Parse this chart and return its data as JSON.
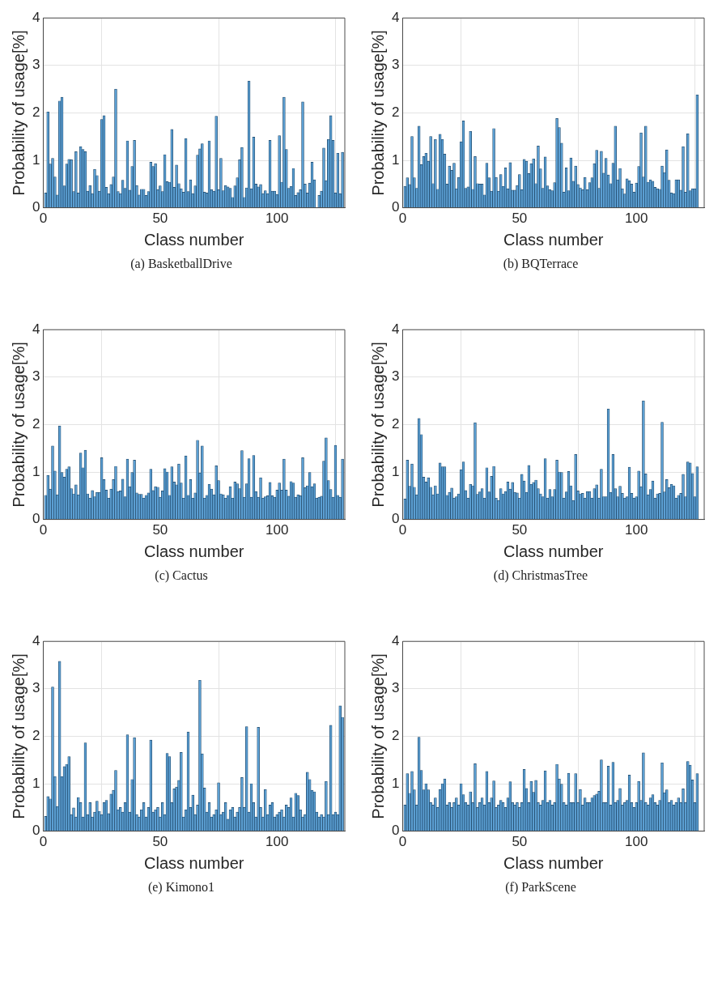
{
  "chart_data": [
    {
      "type": "bar",
      "title": "(a) BasketballDrive",
      "xlabel": "Class number",
      "ylabel": "Probability of usage[%]",
      "color": "#5b9fd3",
      "xlim": [
        0,
        129
      ],
      "xticks": [
        0,
        50,
        100
      ],
      "ylim": [
        0,
        4
      ],
      "yticks": [
        0,
        1,
        2,
        3,
        4
      ],
      "grid": true,
      "x": [
        1,
        2,
        3,
        4,
        5,
        6,
        7,
        8,
        9,
        10,
        11,
        12,
        13,
        14,
        15,
        16,
        17,
        18,
        19,
        20,
        21,
        22,
        23,
        24,
        25,
        26,
        27,
        28,
        29,
        30,
        31,
        32,
        33,
        34,
        35,
        36,
        37,
        38,
        39,
        40,
        41,
        42,
        43,
        44,
        45,
        46,
        47,
        48,
        49,
        50,
        51,
        52,
        53,
        54,
        55,
        56,
        57,
        58,
        59,
        60,
        61,
        62,
        63,
        64,
        65,
        66,
        67,
        68,
        69,
        70,
        71,
        72,
        73,
        74,
        75,
        76,
        77,
        78,
        79,
        80,
        81,
        82,
        83,
        84,
        85,
        86,
        87,
        88,
        89,
        90,
        91,
        92,
        93,
        94,
        95,
        96,
        97,
        98,
        99,
        100,
        101,
        102,
        103,
        104,
        105,
        106,
        107,
        108,
        109,
        110,
        111,
        112,
        113,
        114,
        115,
        116,
        117,
        118,
        119,
        120,
        121,
        122,
        123,
        124,
        125,
        126,
        127,
        128
      ],
      "values": [
        0.31,
        2.02,
        0.92,
        1.04,
        0.65,
        0.27,
        2.25,
        2.33,
        0.46,
        0.92,
        1.02,
        1.01,
        0.34,
        1.18,
        0.31,
        1.29,
        1.23,
        1.18,
        0.35,
        0.47,
        0.3,
        0.81,
        0.68,
        0.35,
        1.86,
        1.94,
        0.43,
        0.3,
        0.49,
        0.65,
        2.5,
        0.34,
        0.3,
        0.58,
        0.41,
        1.41,
        0.37,
        0.87,
        1.42,
        0.47,
        0.27,
        0.39,
        0.39,
        0.26,
        0.34,
        0.96,
        0.87,
        0.93,
        0.38,
        0.46,
        0.34,
        1.12,
        0.55,
        0.54,
        1.65,
        0.43,
        0.9,
        0.51,
        0.4,
        0.33,
        1.46,
        0.34,
        0.59,
        0.3,
        0.46,
        1.11,
        1.24,
        1.35,
        0.33,
        0.31,
        1.41,
        0.38,
        0.35,
        1.93,
        0.38,
        1.04,
        0.36,
        0.47,
        0.44,
        0.41,
        0.22,
        0.46,
        0.63,
        1.01,
        1.27,
        0.22,
        0.42,
        2.67,
        0.4,
        1.49,
        0.5,
        0.44,
        0.49,
        0.3,
        0.36,
        0.3,
        1.42,
        0.35,
        0.35,
        0.28,
        1.52,
        0.54,
        2.33,
        1.23,
        0.41,
        0.45,
        0.83,
        0.26,
        0.32,
        0.38,
        2.23,
        0.5,
        0.31,
        0.52,
        0.96,
        0.59,
        null,
        0.26,
        0.35,
        1.26,
        0.57,
        1.44,
        1.94,
        1.42,
        0.31,
        1.15,
        0.3,
        1.17
      ]
    },
    {
      "type": "bar",
      "title": "(b) BQTerrace",
      "xlabel": "Class number",
      "ylabel": "Probability of usage[%]",
      "color": "#5b9fd3",
      "xlim": [
        0,
        129
      ],
      "xticks": [
        0,
        50,
        100
      ],
      "ylim": [
        0,
        4
      ],
      "yticks": [
        0,
        1,
        2,
        3,
        4
      ],
      "grid": true,
      "x": [
        1,
        2,
        3,
        4,
        5,
        6,
        7,
        8,
        9,
        10,
        11,
        12,
        13,
        14,
        15,
        16,
        17,
        18,
        19,
        20,
        21,
        22,
        23,
        24,
        25,
        26,
        27,
        28,
        29,
        30,
        31,
        32,
        33,
        34,
        35,
        36,
        37,
        38,
        39,
        40,
        41,
        42,
        43,
        44,
        45,
        46,
        47,
        48,
        49,
        50,
        51,
        52,
        53,
        54,
        55,
        56,
        57,
        58,
        59,
        60,
        61,
        62,
        63,
        64,
        65,
        66,
        67,
        68,
        69,
        70,
        71,
        72,
        73,
        74,
        75,
        76,
        77,
        78,
        79,
        80,
        81,
        82,
        83,
        84,
        85,
        86,
        87,
        88,
        89,
        90,
        91,
        92,
        93,
        94,
        95,
        96,
        97,
        98,
        99,
        100,
        101,
        102,
        103,
        104,
        105,
        106,
        107,
        108,
        109,
        110,
        111,
        112,
        113,
        114,
        115,
        116,
        117,
        118,
        119,
        120,
        121,
        122,
        123,
        124,
        125,
        126
      ],
      "values": [
        0.45,
        0.63,
        0.49,
        1.5,
        0.63,
        0.41,
        1.72,
        0.91,
        1.08,
        1.15,
        0.98,
        1.5,
        0.51,
        1.44,
        0.39,
        1.55,
        1.44,
        1.13,
        0.5,
        0.88,
        0.79,
        0.94,
        0.4,
        0.64,
        1.39,
        1.83,
        0.41,
        0.44,
        1.61,
        0.39,
        1.08,
        0.51,
        0.5,
        0.5,
        0.27,
        0.94,
        0.63,
        0.35,
        1.67,
        0.64,
        0.35,
        0.7,
        0.45,
        0.84,
        0.4,
        0.95,
        0.37,
        0.37,
        0.47,
        0.7,
        0.38,
        1.02,
        0.98,
        0.72,
        0.93,
        1.03,
        0.51,
        1.3,
        0.82,
        0.41,
        1.07,
        0.46,
        0.38,
        0.36,
        0.53,
        1.88,
        1.69,
        1.36,
        0.33,
        0.84,
        0.36,
        1.05,
        0.56,
        0.88,
        0.49,
        0.42,
        0.38,
        0.64,
        0.38,
        0.53,
        0.63,
        0.93,
        1.21,
        0.41,
        1.19,
        0.73,
        1.04,
        0.69,
        0.51,
        0.94,
        1.72,
        0.59,
        0.83,
        0.4,
        0.29,
        0.61,
        0.57,
        0.5,
        0.33,
        0.52,
        0.87,
        1.58,
        0.65,
        1.72,
        0.54,
        0.59,
        0.56,
        0.43,
        0.4,
        0.39,
        0.88,
        0.74,
        1.22,
        0.58,
        0.31,
        0.3,
        0.59,
        0.59,
        0.37,
        1.29,
        0.33,
        1.56,
        0.36,
        0.4,
        0.4,
        2.38
      ]
    },
    {
      "type": "bar",
      "title": "(c) Cactus",
      "xlabel": "Class number",
      "ylabel": "Probability of usage[%]",
      "color": "#5b9fd3",
      "xlim": [
        0,
        129
      ],
      "xticks": [
        0,
        50,
        100
      ],
      "ylim": [
        0,
        4
      ],
      "yticks": [
        0,
        1,
        2,
        3,
        4
      ],
      "grid": true,
      "x": [
        1,
        2,
        3,
        4,
        5,
        6,
        7,
        8,
        9,
        10,
        11,
        12,
        13,
        14,
        15,
        16,
        17,
        18,
        19,
        20,
        21,
        22,
        23,
        24,
        25,
        26,
        27,
        28,
        29,
        30,
        31,
        32,
        33,
        34,
        35,
        36,
        37,
        38,
        39,
        40,
        41,
        42,
        43,
        44,
        45,
        46,
        47,
        48,
        49,
        50,
        51,
        52,
        53,
        54,
        55,
        56,
        57,
        58,
        59,
        60,
        61,
        62,
        63,
        64,
        65,
        66,
        67,
        68,
        69,
        70,
        71,
        72,
        73,
        74,
        75,
        76,
        77,
        78,
        79,
        80,
        81,
        82,
        83,
        84,
        85,
        86,
        87,
        88,
        89,
        90,
        91,
        92,
        93,
        94,
        95,
        96,
        97,
        98,
        99,
        100,
        101,
        102,
        103,
        104,
        105,
        106,
        107,
        108,
        109,
        110,
        111,
        112,
        113,
        114,
        115,
        116,
        117,
        118,
        119,
        120,
        121,
        122,
        123,
        124,
        125,
        126,
        127,
        128
      ],
      "values": [
        0.51,
        0.93,
        0.64,
        1.55,
        1.02,
        0.52,
        1.97,
        0.99,
        0.89,
        1.06,
        1.11,
        0.65,
        0.54,
        0.73,
        0.52,
        1.4,
        1.09,
        1.46,
        0.54,
        0.45,
        0.61,
        0.48,
        0.57,
        0.57,
        1.3,
        0.84,
        0.62,
        0.45,
        0.64,
        0.84,
        1.12,
        0.59,
        0.6,
        0.85,
        0.48,
        1.27,
        0.69,
        0.99,
        1.25,
        0.56,
        0.53,
        0.53,
        0.45,
        0.51,
        0.56,
        1.06,
        0.61,
        0.69,
        0.68,
        0.47,
        0.6,
        1.07,
        1.0,
        0.51,
        1.11,
        0.79,
        0.73,
        1.17,
        0.77,
        0.45,
        1.34,
        0.51,
        0.84,
        0.45,
        0.56,
        1.67,
        0.98,
        1.55,
        0.45,
        0.51,
        0.74,
        0.64,
        0.52,
        1.13,
        0.82,
        0.54,
        0.52,
        0.45,
        0.51,
        0.69,
        0.45,
        0.79,
        0.75,
        0.65,
        1.45,
        0.47,
        0.75,
        1.28,
        0.47,
        1.35,
        0.59,
        0.47,
        0.88,
        0.45,
        0.48,
        0.5,
        0.78,
        0.5,
        0.47,
        0.62,
        0.77,
        0.62,
        1.27,
        0.62,
        0.49,
        0.8,
        0.77,
        0.47,
        0.52,
        0.5,
        1.3,
        0.67,
        0.71,
        0.99,
        0.69,
        0.75,
        0.45,
        0.47,
        0.49,
        1.23,
        1.72,
        0.82,
        0.63,
        0.47,
        1.56,
        0.51,
        0.47,
        1.27
      ]
    },
    {
      "type": "bar",
      "title": "(d) ChristmasTree",
      "xlabel": "Class number",
      "ylabel": "Probability of usage[%]",
      "color": "#5b9fd3",
      "xlim": [
        0,
        129
      ],
      "xticks": [
        0,
        50,
        100
      ],
      "ylim": [
        0,
        4
      ],
      "yticks": [
        0,
        1,
        2,
        3,
        4
      ],
      "grid": true,
      "x": [
        1,
        2,
        3,
        4,
        5,
        6,
        7,
        8,
        9,
        10,
        11,
        12,
        13,
        14,
        15,
        16,
        17,
        18,
        19,
        20,
        21,
        22,
        23,
        24,
        25,
        26,
        27,
        28,
        29,
        30,
        31,
        32,
        33,
        34,
        35,
        36,
        37,
        38,
        39,
        40,
        41,
        42,
        43,
        44,
        45,
        46,
        47,
        48,
        49,
        50,
        51,
        52,
        53,
        54,
        55,
        56,
        57,
        58,
        59,
        60,
        61,
        62,
        63,
        64,
        65,
        66,
        67,
        68,
        69,
        70,
        71,
        72,
        73,
        74,
        75,
        76,
        77,
        78,
        79,
        80,
        81,
        82,
        83,
        84,
        85,
        86,
        87,
        88,
        89,
        90,
        91,
        92,
        93,
        94,
        95,
        96,
        97,
        98,
        99,
        100,
        101,
        102,
        103,
        104,
        105,
        106,
        107,
        108,
        109,
        110,
        111,
        112,
        113,
        114,
        115,
        116,
        117,
        118,
        119,
        120,
        121,
        122,
        123,
        124,
        125,
        126
      ],
      "values": [
        0.43,
        1.25,
        0.7,
        1.17,
        0.68,
        0.52,
        2.13,
        1.79,
        0.89,
        0.79,
        0.88,
        0.68,
        0.52,
        0.71,
        0.54,
        1.19,
        1.11,
        1.11,
        0.51,
        0.57,
        0.66,
        0.45,
        0.48,
        0.54,
        1.05,
        1.21,
        0.61,
        0.45,
        0.74,
        0.71,
        2.04,
        0.53,
        0.58,
        0.65,
        0.45,
        1.09,
        0.58,
        0.91,
        1.12,
        0.45,
        0.4,
        0.65,
        0.54,
        0.59,
        0.79,
        0.64,
        0.78,
        0.57,
        0.56,
        0.45,
        0.95,
        0.81,
        0.57,
        1.14,
        0.74,
        0.78,
        0.83,
        0.65,
        0.54,
        0.48,
        1.28,
        0.45,
        0.63,
        0.48,
        0.63,
        1.25,
        1.0,
        0.99,
        0.45,
        0.58,
        1.01,
        0.71,
        0.4,
        1.37,
        0.6,
        0.54,
        0.55,
        0.45,
        0.59,
        0.59,
        0.45,
        0.65,
        0.73,
        0.45,
        1.06,
        0.48,
        0.48,
        2.33,
        0.57,
        1.37,
        0.65,
        0.48,
        0.7,
        0.55,
        0.45,
        0.48,
        1.1,
        0.55,
        0.45,
        0.48,
        1.02,
        0.69,
        2.5,
        0.96,
        0.52,
        0.63,
        0.81,
        0.45,
        0.54,
        0.55,
        2.05,
        0.58,
        0.84,
        0.67,
        0.74,
        0.71,
        0.45,
        0.51,
        0.55,
        0.95,
        0.48,
        1.21,
        1.19,
        0.97,
        0.48,
        1.11
      ]
    },
    {
      "type": "bar",
      "title": "(e) Kimono1",
      "xlabel": "Class number",
      "ylabel": "Probability of usage[%]",
      "color": "#5b9fd3",
      "xlim": [
        0,
        129
      ],
      "xticks": [
        0,
        50,
        100
      ],
      "ylim": [
        0,
        4
      ],
      "yticks": [
        0,
        1,
        2,
        3,
        4
      ],
      "grid": true,
      "x": [
        1,
        2,
        3,
        4,
        5,
        6,
        7,
        8,
        9,
        10,
        11,
        12,
        13,
        14,
        15,
        16,
        17,
        18,
        19,
        20,
        21,
        22,
        23,
        24,
        25,
        26,
        27,
        28,
        29,
        30,
        31,
        32,
        33,
        34,
        35,
        36,
        37,
        38,
        39,
        40,
        41,
        42,
        43,
        44,
        45,
        46,
        47,
        48,
        49,
        50,
        51,
        52,
        53,
        54,
        55,
        56,
        57,
        58,
        59,
        60,
        61,
        62,
        63,
        64,
        65,
        66,
        67,
        68,
        69,
        70,
        71,
        72,
        73,
        74,
        75,
        76,
        77,
        78,
        79,
        80,
        81,
        82,
        83,
        84,
        85,
        86,
        87,
        88,
        89,
        90,
        91,
        92,
        93,
        94,
        95,
        96,
        97,
        98,
        99,
        100,
        101,
        102,
        103,
        104,
        105,
        106,
        107,
        108,
        109,
        110,
        111,
        112,
        113,
        114,
        115,
        116,
        117,
        118,
        119,
        120,
        121,
        122,
        123,
        124,
        125,
        126,
        127,
        128
      ],
      "values": [
        0.31,
        0.73,
        0.68,
        3.04,
        1.15,
        0.52,
        3.58,
        1.15,
        1.36,
        1.41,
        1.57,
        0.35,
        0.49,
        0.3,
        0.71,
        0.6,
        0.3,
        1.86,
        0.35,
        0.6,
        0.3,
        0.4,
        0.63,
        0.42,
        0.35,
        0.6,
        0.65,
        0.37,
        0.78,
        0.86,
        1.28,
        0.45,
        0.5,
        0.4,
        0.6,
        2.03,
        0.4,
        1.09,
        1.97,
        0.35,
        0.3,
        0.45,
        0.6,
        0.3,
        0.5,
        1.92,
        0.4,
        0.45,
        0.5,
        0.3,
        0.6,
        0.35,
        1.64,
        1.57,
        0.6,
        0.89,
        0.93,
        1.07,
        1.66,
        0.3,
        0.45,
        2.09,
        0.5,
        0.76,
        0.35,
        0.55,
        3.18,
        1.63,
        0.91,
        0.4,
        0.6,
        0.3,
        0.35,
        0.45,
        1.02,
        0.35,
        0.4,
        0.6,
        0.25,
        0.45,
        0.5,
        0.3,
        0.4,
        0.5,
        1.13,
        0.5,
        2.2,
        0.4,
        1.0,
        0.6,
        0.3,
        2.19,
        0.5,
        0.3,
        0.88,
        0.35,
        0.55,
        0.6,
        0.3,
        0.35,
        0.4,
        0.45,
        0.3,
        0.55,
        0.5,
        0.7,
        0.3,
        0.8,
        0.75,
        0.45,
        0.3,
        0.35,
        1.24,
        1.09,
        0.86,
        0.83,
        0.4,
        0.3,
        0.35,
        0.3,
        1.05,
        0.35,
        2.23,
        0.35,
        0.4,
        0.35,
        2.64,
        2.4
      ]
    },
    {
      "type": "bar",
      "title": "(f) ParkScene",
      "xlabel": "Class number",
      "ylabel": "Probability of usage[%]",
      "color": "#5b9fd3",
      "xlim": [
        0,
        129
      ],
      "xticks": [
        0,
        50,
        100
      ],
      "ylim": [
        0,
        4
      ],
      "yticks": [
        0,
        1,
        2,
        3,
        4
      ],
      "grid": true,
      "x": [
        1,
        2,
        3,
        4,
        5,
        6,
        7,
        8,
        9,
        10,
        11,
        12,
        13,
        14,
        15,
        16,
        17,
        18,
        19,
        20,
        21,
        22,
        23,
        24,
        25,
        26,
        27,
        28,
        29,
        30,
        31,
        32,
        33,
        34,
        35,
        36,
        37,
        38,
        39,
        40,
        41,
        42,
        43,
        44,
        45,
        46,
        47,
        48,
        49,
        50,
        51,
        52,
        53,
        54,
        55,
        56,
        57,
        58,
        59,
        60,
        61,
        62,
        63,
        64,
        65,
        66,
        67,
        68,
        69,
        70,
        71,
        72,
        73,
        74,
        75,
        76,
        77,
        78,
        79,
        80,
        81,
        82,
        83,
        84,
        85,
        86,
        87,
        88,
        89,
        90,
        91,
        92,
        93,
        94,
        95,
        96,
        97,
        98,
        99,
        100,
        101,
        102,
        103,
        104,
        105,
        106,
        107,
        108,
        109,
        110,
        111,
        112,
        113,
        114,
        115,
        116,
        117,
        118,
        119,
        120,
        121,
        122,
        123,
        124,
        125,
        126
      ],
      "values": [
        0.55,
        1.21,
        0.8,
        1.26,
        0.87,
        0.55,
        1.98,
        1.28,
        0.87,
        1.0,
        0.87,
        0.6,
        0.55,
        0.7,
        0.5,
        0.88,
        1.0,
        1.1,
        0.55,
        0.6,
        0.5,
        0.6,
        0.7,
        0.55,
        1.0,
        0.77,
        0.6,
        0.55,
        0.83,
        0.6,
        1.42,
        0.5,
        0.6,
        0.7,
        0.55,
        1.26,
        0.6,
        0.7,
        1.06,
        0.5,
        0.55,
        0.65,
        0.6,
        0.5,
        0.7,
        1.04,
        0.6,
        0.55,
        0.6,
        0.5,
        0.6,
        1.3,
        0.9,
        0.6,
        1.05,
        0.82,
        1.07,
        0.6,
        0.55,
        0.65,
        1.27,
        0.6,
        0.65,
        0.55,
        0.6,
        1.41,
        1.1,
        0.99,
        0.6,
        0.55,
        1.22,
        0.6,
        0.6,
        1.21,
        0.6,
        0.88,
        0.55,
        0.7,
        0.6,
        0.6,
        0.7,
        0.75,
        0.78,
        0.84,
        1.5,
        0.6,
        0.6,
        1.37,
        0.55,
        1.45,
        0.6,
        0.65,
        0.9,
        0.55,
        0.6,
        0.65,
        1.18,
        0.6,
        0.5,
        0.6,
        1.05,
        0.65,
        1.65,
        0.6,
        0.55,
        0.7,
        0.77,
        0.6,
        0.55,
        0.65,
        1.44,
        0.81,
        0.87,
        0.6,
        0.65,
        0.55,
        0.6,
        0.7,
        0.6,
        0.89,
        0.6,
        1.47,
        1.39,
        1.08,
        0.6,
        1.21
      ]
    }
  ]
}
